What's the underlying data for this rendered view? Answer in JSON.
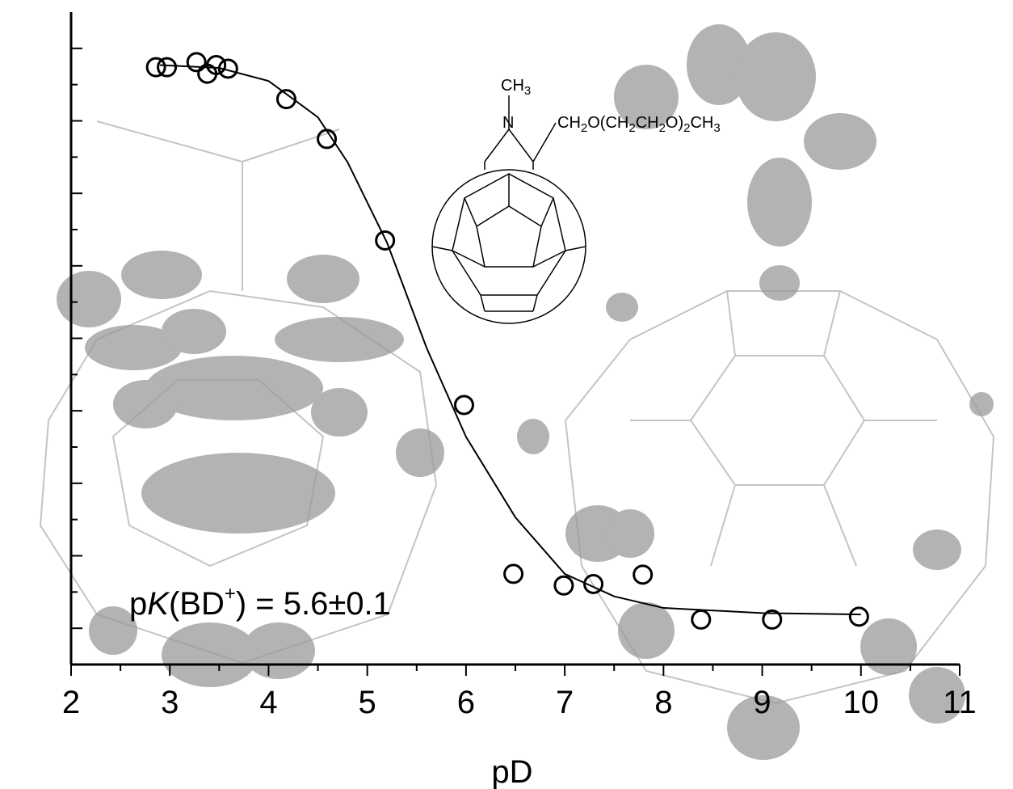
{
  "chart_data": {
    "type": "scatter",
    "xlabel": "pD",
    "xlim": [
      2,
      11
    ],
    "xticks": [
      2,
      3,
      4,
      5,
      6,
      7,
      8,
      9,
      10,
      11
    ],
    "xminorticks": [
      2.5,
      3.5,
      4.5,
      5.5,
      6.5,
      7.5,
      8.5,
      9.5,
      10.5
    ],
    "ylim": [
      -0.5,
      8.5
    ],
    "yticks": [
      0,
      0.5,
      1,
      1.5,
      2,
      2.5,
      3,
      3.5,
      4,
      4.5,
      5,
      5.5,
      6,
      6.5,
      7,
      7.5,
      8
    ],
    "series": [
      {
        "color": "#000000",
        "marker": "circle",
        "x": [
          2.86,
          2.97,
          3.27,
          3.38,
          3.47,
          3.59,
          4.18,
          4.59,
          5.18,
          5.98,
          6.48,
          6.99,
          7.29,
          7.79,
          8.38,
          9.1,
          9.98
        ],
        "values": [
          7.74,
          7.74,
          7.81,
          7.65,
          7.77,
          7.72,
          7.3,
          6.75,
          5.35,
          3.08,
          0.75,
          0.59,
          0.61,
          0.74,
          0.12,
          0.12,
          0.16
        ]
      },
      {
        "color": "#000000",
        "line": true,
        "x": [
          2.9,
          3.5,
          4,
          4.5,
          4.8,
          5.2,
          5.6,
          6,
          6.5,
          7,
          7.5,
          8,
          9,
          10
        ],
        "values": [
          7.77,
          7.73,
          7.55,
          7.05,
          6.43,
          5.32,
          3.87,
          2.64,
          1.53,
          0.75,
          0.44,
          0.28,
          0.21,
          0.19
        ]
      }
    ],
    "annotation": {
      "parts": [
        "p",
        "K",
        "(BD",
        "+",
        ") = 5.6±0.1"
      ]
    },
    "molecule": {
      "methyl": [
        "CH",
        "3"
      ],
      "nitrogen": "N",
      "side_chain": [
        "CH",
        "2",
        "O(CH",
        "2",
        "CH",
        "2",
        "O)",
        "2",
        "CH",
        "3"
      ]
    }
  }
}
